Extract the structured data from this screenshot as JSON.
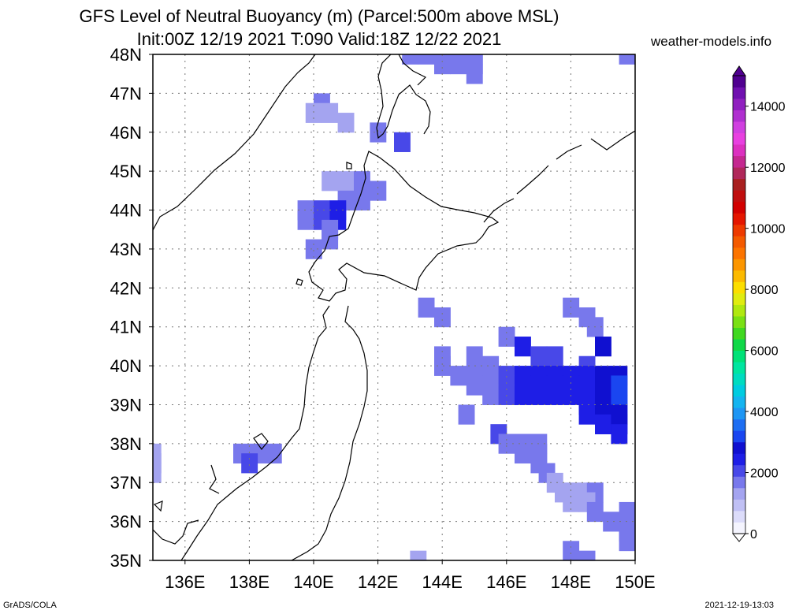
{
  "header": {
    "title_line1": "GFS Level of Neutral Buoyancy (m) (Parcel:500m above MSL)",
    "title_line2": "Init:00Z 12/19 2021 T:090 Valid:18Z 12/22 2021",
    "site": "weather-models.info"
  },
  "footer": {
    "left": "GrADS/COLA",
    "right": "2021-12-19-13:03"
  },
  "map": {
    "lon_range": [
      135,
      150
    ],
    "lat_range": [
      35,
      48
    ],
    "lon_labels": [
      "136E",
      "138E",
      "140E",
      "142E",
      "144E",
      "146E",
      "148E",
      "150E"
    ],
    "lon_values": [
      136,
      138,
      140,
      142,
      144,
      146,
      148,
      150
    ],
    "lat_labels": [
      "35N",
      "36N",
      "37N",
      "38N",
      "39N",
      "40N",
      "41N",
      "42N",
      "43N",
      "44N",
      "45N",
      "46N",
      "47N",
      "48N"
    ],
    "lat_values": [
      35,
      36,
      37,
      38,
      39,
      40,
      41,
      42,
      43,
      44,
      45,
      46,
      47,
      48
    ]
  },
  "colorbar": {
    "min": 0,
    "max": 15000,
    "tick_labels": [
      "0",
      "2000",
      "4000",
      "6000",
      "8000",
      "10000",
      "12000",
      "14000"
    ],
    "tick_values": [
      0,
      2000,
      4000,
      6000,
      8000,
      10000,
      12000,
      14000
    ],
    "colors": [
      "#f4f4fe",
      "#dcdcfa",
      "#c0c0f4",
      "#a4a4f0",
      "#7878ec",
      "#4848e8",
      "#1e1ee6",
      "#1010d0",
      "#1a46f0",
      "#1e6ef2",
      "#1e96f4",
      "#14b4f0",
      "#00cce0",
      "#00dcc0",
      "#00e6a0",
      "#00e278",
      "#10d848",
      "#40d820",
      "#7ae014",
      "#b0e810",
      "#e0ec10",
      "#fcde00",
      "#fcba00",
      "#fc9600",
      "#fc7400",
      "#f45a00",
      "#ee3a00",
      "#e41600",
      "#d20000",
      "#c00e0e",
      "#a82020",
      "#b0285a",
      "#c42890",
      "#dc30c0",
      "#e840e0",
      "#d040e0",
      "#b030d0",
      "#9020c0",
      "#7010b0",
      "#500090"
    ]
  },
  "field_cells": [
    {
      "lon": 143.0,
      "lat": 48.0,
      "v": 1500
    },
    {
      "lon": 143.5,
      "lat": 48.0,
      "v": 1500
    },
    {
      "lon": 144.0,
      "lat": 48.0,
      "v": 1500
    },
    {
      "lon": 144.5,
      "lat": 48.0,
      "v": 1500
    },
    {
      "lon": 145.0,
      "lat": 48.0,
      "v": 1500
    },
    {
      "lon": 144.0,
      "lat": 47.75,
      "v": 1600
    },
    {
      "lon": 144.5,
      "lat": 47.75,
      "v": 1600
    },
    {
      "lon": 145.0,
      "lat": 47.75,
      "v": 1600
    },
    {
      "lon": 145.0,
      "lat": 47.5,
      "v": 1500
    },
    {
      "lon": 149.75,
      "lat": 48.0,
      "v": 1500
    },
    {
      "lon": 140.25,
      "lat": 46.75,
      "v": 1500
    },
    {
      "lon": 140.0,
      "lat": 46.5,
      "v": 1400
    },
    {
      "lon": 140.5,
      "lat": 46.5,
      "v": 1400
    },
    {
      "lon": 141.0,
      "lat": 46.25,
      "v": 1300
    },
    {
      "lon": 142.0,
      "lat": 46.0,
      "v": 1800
    },
    {
      "lon": 142.75,
      "lat": 45.75,
      "v": 2200
    },
    {
      "lon": 140.5,
      "lat": 44.75,
      "v": 1400
    },
    {
      "lon": 141.0,
      "lat": 44.75,
      "v": 1400
    },
    {
      "lon": 141.5,
      "lat": 44.75,
      "v": 1600
    },
    {
      "lon": 141.5,
      "lat": 44.5,
      "v": 1700
    },
    {
      "lon": 142.0,
      "lat": 44.5,
      "v": 1800
    },
    {
      "lon": 141.0,
      "lat": 44.25,
      "v": 1600
    },
    {
      "lon": 141.5,
      "lat": 44.25,
      "v": 1700
    },
    {
      "lon": 139.75,
      "lat": 44.0,
      "v": 1600
    },
    {
      "lon": 140.25,
      "lat": 44.0,
      "v": 2000
    },
    {
      "lon": 140.75,
      "lat": 44.0,
      "v": 2600
    },
    {
      "lon": 139.75,
      "lat": 43.75,
      "v": 1800
    },
    {
      "lon": 140.25,
      "lat": 43.75,
      "v": 2200
    },
    {
      "lon": 140.75,
      "lat": 43.75,
      "v": 2400
    },
    {
      "lon": 140.5,
      "lat": 43.5,
      "v": 1500
    },
    {
      "lon": 140.5,
      "lat": 43.25,
      "v": 1500
    },
    {
      "lon": 140.0,
      "lat": 43.0,
      "v": 1500
    },
    {
      "lon": 143.5,
      "lat": 41.5,
      "v": 1600
    },
    {
      "lon": 144.0,
      "lat": 41.25,
      "v": 1700
    },
    {
      "lon": 148.0,
      "lat": 41.5,
      "v": 1700
    },
    {
      "lon": 148.5,
      "lat": 41.25,
      "v": 1600
    },
    {
      "lon": 148.75,
      "lat": 41.0,
      "v": 1700
    },
    {
      "lon": 146.0,
      "lat": 40.75,
      "v": 1800
    },
    {
      "lon": 146.5,
      "lat": 40.5,
      "v": 2400
    },
    {
      "lon": 149.0,
      "lat": 40.5,
      "v": 2800
    },
    {
      "lon": 144.0,
      "lat": 40.25,
      "v": 1700
    },
    {
      "lon": 144.0,
      "lat": 40.0,
      "v": 1700
    },
    {
      "lon": 145.0,
      "lat": 40.25,
      "v": 1700
    },
    {
      "lon": 145.5,
      "lat": 40.0,
      "v": 1500
    },
    {
      "lon": 147.0,
      "lat": 40.25,
      "v": 2200
    },
    {
      "lon": 147.5,
      "lat": 40.25,
      "v": 2200
    },
    {
      "lon": 148.5,
      "lat": 40.0,
      "v": 2200
    },
    {
      "lon": 144.5,
      "lat": 39.75,
      "v": 1600
    },
    {
      "lon": 145.0,
      "lat": 39.75,
      "v": 1700
    },
    {
      "lon": 145.5,
      "lat": 39.75,
      "v": 1800
    },
    {
      "lon": 146.0,
      "lat": 39.75,
      "v": 2000
    },
    {
      "lon": 146.5,
      "lat": 39.75,
      "v": 2300
    },
    {
      "lon": 147.0,
      "lat": 39.75,
      "v": 2400
    },
    {
      "lon": 147.5,
      "lat": 39.75,
      "v": 2400
    },
    {
      "lon": 148.0,
      "lat": 39.75,
      "v": 2400
    },
    {
      "lon": 148.5,
      "lat": 39.75,
      "v": 2500
    },
    {
      "lon": 149.0,
      "lat": 39.75,
      "v": 2700
    },
    {
      "lon": 149.5,
      "lat": 39.75,
      "v": 2900
    },
    {
      "lon": 145.0,
      "lat": 39.5,
      "v": 1700
    },
    {
      "lon": 145.5,
      "lat": 39.5,
      "v": 1800
    },
    {
      "lon": 146.0,
      "lat": 39.5,
      "v": 2000
    },
    {
      "lon": 146.5,
      "lat": 39.5,
      "v": 2400
    },
    {
      "lon": 147.0,
      "lat": 39.5,
      "v": 2500
    },
    {
      "lon": 147.5,
      "lat": 39.5,
      "v": 2500
    },
    {
      "lon": 148.0,
      "lat": 39.5,
      "v": 2500
    },
    {
      "lon": 148.5,
      "lat": 39.5,
      "v": 2500
    },
    {
      "lon": 149.0,
      "lat": 39.5,
      "v": 2800
    },
    {
      "lon": 149.5,
      "lat": 39.5,
      "v": 3000
    },
    {
      "lon": 145.5,
      "lat": 39.25,
      "v": 1800
    },
    {
      "lon": 146.0,
      "lat": 39.25,
      "v": 2000
    },
    {
      "lon": 146.5,
      "lat": 39.25,
      "v": 2300
    },
    {
      "lon": 147.0,
      "lat": 39.25,
      "v": 2400
    },
    {
      "lon": 147.5,
      "lat": 39.25,
      "v": 2400
    },
    {
      "lon": 148.0,
      "lat": 39.25,
      "v": 2400
    },
    {
      "lon": 148.5,
      "lat": 39.25,
      "v": 2600
    },
    {
      "lon": 149.0,
      "lat": 39.25,
      "v": 2900
    },
    {
      "lon": 149.5,
      "lat": 39.25,
      "v": 3100
    },
    {
      "lon": 148.5,
      "lat": 39.0,
      "v": 2600
    },
    {
      "lon": 149.0,
      "lat": 39.0,
      "v": 2800
    },
    {
      "lon": 149.5,
      "lat": 39.0,
      "v": 3000
    },
    {
      "lon": 148.5,
      "lat": 38.75,
      "v": 2500
    },
    {
      "lon": 149.0,
      "lat": 38.75,
      "v": 2700
    },
    {
      "lon": 149.5,
      "lat": 38.75,
      "v": 2900
    },
    {
      "lon": 149.0,
      "lat": 38.5,
      "v": 2500
    },
    {
      "lon": 149.5,
      "lat": 38.5,
      "v": 2700
    },
    {
      "lon": 149.5,
      "lat": 38.25,
      "v": 2500
    },
    {
      "lon": 144.75,
      "lat": 38.75,
      "v": 1800
    },
    {
      "lon": 145.75,
      "lat": 38.25,
      "v": 1900
    },
    {
      "lon": 146.0,
      "lat": 38.0,
      "v": 1700
    },
    {
      "lon": 146.5,
      "lat": 38.0,
      "v": 1700
    },
    {
      "lon": 147.0,
      "lat": 38.0,
      "v": 1700
    },
    {
      "lon": 146.5,
      "lat": 37.75,
      "v": 1600
    },
    {
      "lon": 147.0,
      "lat": 37.75,
      "v": 1600
    },
    {
      "lon": 147.0,
      "lat": 37.5,
      "v": 1500
    },
    {
      "lon": 147.25,
      "lat": 37.25,
      "v": 1500
    },
    {
      "lon": 147.5,
      "lat": 37.0,
      "v": 1400
    },
    {
      "lon": 147.75,
      "lat": 36.75,
      "v": 1400
    },
    {
      "lon": 148.25,
      "lat": 36.75,
      "v": 1400
    },
    {
      "lon": 148.75,
      "lat": 36.75,
      "v": 1500
    },
    {
      "lon": 148.0,
      "lat": 36.5,
      "v": 1300
    },
    {
      "lon": 148.5,
      "lat": 36.5,
      "v": 1400
    },
    {
      "lon": 148.75,
      "lat": 36.25,
      "v": 1500
    },
    {
      "lon": 149.25,
      "lat": 36.0,
      "v": 1500
    },
    {
      "lon": 149.75,
      "lat": 36.25,
      "v": 1600
    },
    {
      "lon": 149.75,
      "lat": 36.0,
      "v": 1600
    },
    {
      "lon": 149.75,
      "lat": 35.75,
      "v": 1500
    },
    {
      "lon": 149.75,
      "lat": 35.5,
      "v": 1500
    },
    {
      "lon": 148.0,
      "lat": 35.25,
      "v": 1700
    },
    {
      "lon": 148.5,
      "lat": 35.0,
      "v": 1600
    },
    {
      "lon": 143.25,
      "lat": 35.0,
      "v": 1200
    },
    {
      "lon": 135.0,
      "lat": 37.75,
      "v": 1300
    },
    {
      "lon": 135.0,
      "lat": 37.5,
      "v": 1300
    },
    {
      "lon": 135.0,
      "lat": 37.25,
      "v": 1300
    },
    {
      "lon": 137.75,
      "lat": 37.75,
      "v": 1800
    },
    {
      "lon": 138.25,
      "lat": 37.75,
      "v": 1800
    },
    {
      "lon": 138.75,
      "lat": 37.75,
      "v": 1800
    },
    {
      "lon": 138.0,
      "lat": 37.5,
      "v": 1900
    }
  ]
}
